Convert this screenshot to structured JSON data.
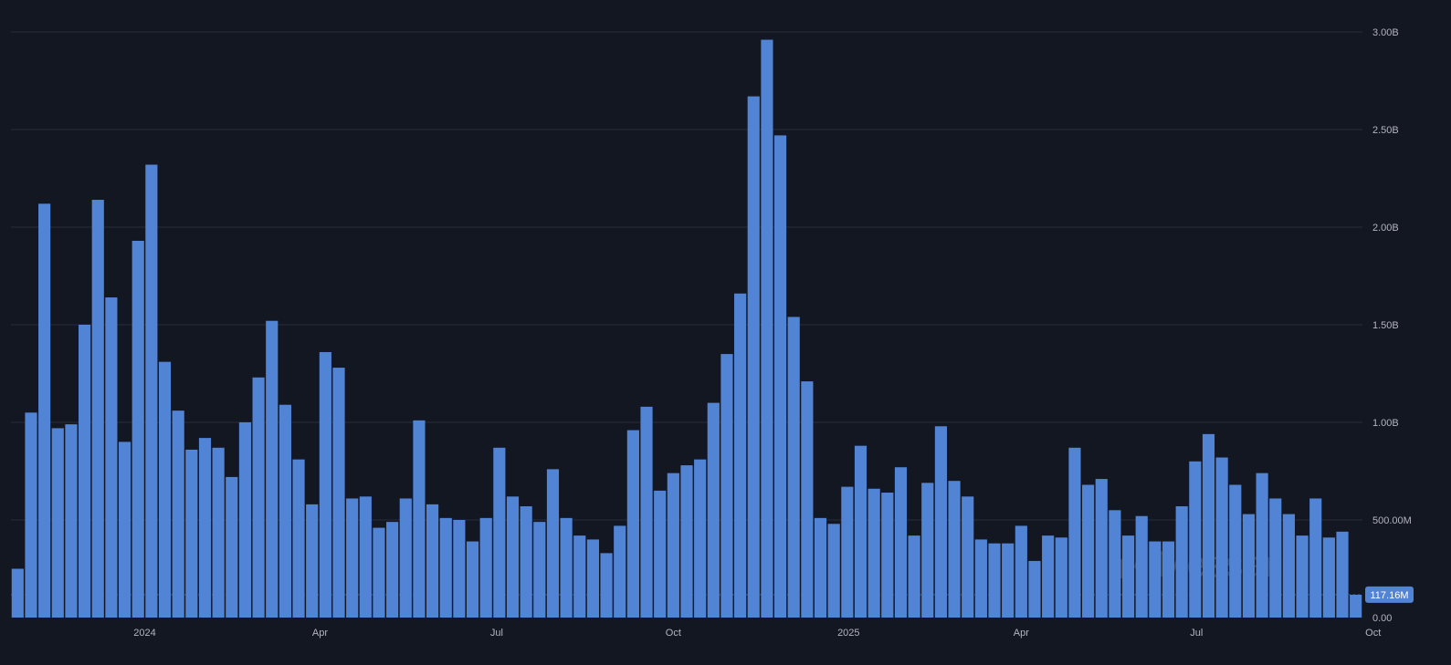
{
  "watermark": {
    "text": "Messari"
  },
  "chart_data": {
    "type": "bar",
    "ylim": [
      0,
      3000000000
    ],
    "yticks": [
      {
        "value": 0,
        "label": "0.00"
      },
      {
        "value": 500000000,
        "label": "500.00M"
      },
      {
        "value": 1000000000,
        "label": "1.00B"
      },
      {
        "value": 1500000000,
        "label": "1.50B"
      },
      {
        "value": 2000000000,
        "label": "2.00B"
      },
      {
        "value": 2500000000,
        "label": "2.50B"
      },
      {
        "value": 3000000000,
        "label": "3.00B"
      }
    ],
    "xticks": [
      {
        "index": 9.5,
        "label": "2024"
      },
      {
        "index": 22.6,
        "label": "Apr"
      },
      {
        "index": 35.8,
        "label": "Jul"
      },
      {
        "index": 49,
        "label": "Oct"
      },
      {
        "index": 62.1,
        "label": "2025"
      },
      {
        "index": 75,
        "label": "Apr"
      },
      {
        "index": 88.1,
        "label": "Jul"
      },
      {
        "index": 101.3,
        "label": "Oct"
      }
    ],
    "grid": true,
    "color": "#5284d6",
    "last_value": {
      "value": 117160000,
      "label": "117.16M"
    },
    "values": [
      250000000,
      1050000000,
      2120000000,
      970000000,
      990000000,
      1500000000,
      2140000000,
      1640000000,
      900000000,
      1930000000,
      2320000000,
      1310000000,
      1060000000,
      860000000,
      920000000,
      870000000,
      720000000,
      1000000000,
      1230000000,
      1520000000,
      1090000000,
      810000000,
      580000000,
      1360000000,
      1280000000,
      610000000,
      620000000,
      460000000,
      490000000,
      610000000,
      1010000000,
      580000000,
      510000000,
      500000000,
      390000000,
      510000000,
      870000000,
      620000000,
      570000000,
      490000000,
      760000000,
      510000000,
      420000000,
      400000000,
      330000000,
      470000000,
      960000000,
      1080000000,
      650000000,
      740000000,
      780000000,
      810000000,
      1100000000,
      1350000000,
      1660000000,
      2670000000,
      2960000000,
      2470000000,
      1540000000,
      1210000000,
      510000000,
      480000000,
      670000000,
      880000000,
      660000000,
      640000000,
      770000000,
      420000000,
      690000000,
      980000000,
      700000000,
      620000000,
      400000000,
      380000000,
      380000000,
      470000000,
      290000000,
      420000000,
      410000000,
      870000000,
      680000000,
      710000000,
      550000000,
      420000000,
      520000000,
      390000000,
      390000000,
      570000000,
      800000000,
      940000000,
      820000000,
      680000000,
      530000000,
      740000000,
      610000000,
      530000000,
      420000000,
      610000000,
      410000000,
      440000000,
      117160000
    ]
  }
}
